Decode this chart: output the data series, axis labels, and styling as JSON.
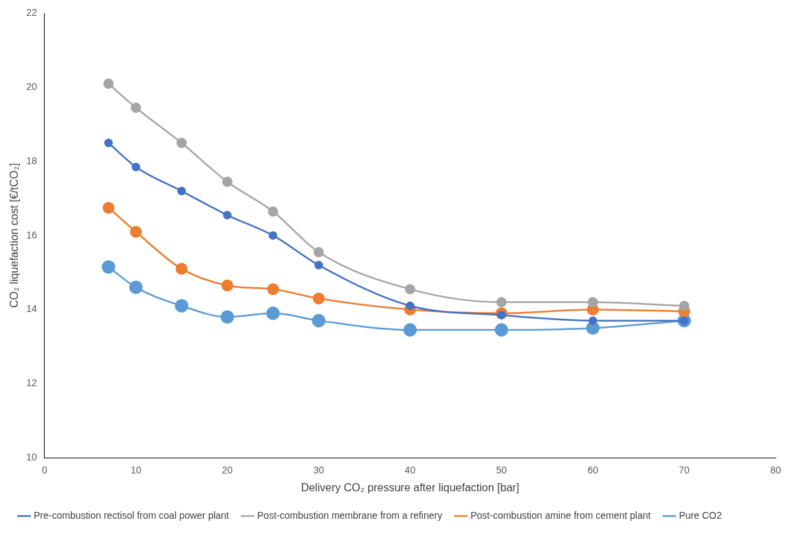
{
  "chart_data": {
    "type": "line",
    "xlabel": "Delivery CO₂ pressure after liquefaction [bar]",
    "ylabel": "CO₂ liquefaction cost [€/tCO₂]",
    "x": [
      7,
      10,
      15,
      20,
      25,
      30,
      40,
      50,
      60,
      70
    ],
    "xlim": [
      0,
      80
    ],
    "xticks": [
      0,
      10,
      20,
      30,
      40,
      50,
      60,
      70,
      80
    ],
    "ylim": [
      10,
      22
    ],
    "yticks": [
      10,
      12,
      14,
      16,
      18,
      20,
      22
    ],
    "grid": false,
    "legend": "bottom",
    "marker": "circle",
    "line_style": "solid",
    "series": [
      {
        "name": "Pure CO2",
        "color": "#5b9bd5",
        "values": [
          15.15,
          14.6,
          14.1,
          13.8,
          13.9,
          13.7,
          13.45,
          13.45,
          13.5,
          13.7
        ]
      },
      {
        "name": "Post-combustion amine from cement plant",
        "color": "#ed7d31",
        "values": [
          16.75,
          16.1,
          15.1,
          14.65,
          14.55,
          14.3,
          14.0,
          13.9,
          14.0,
          13.95
        ]
      },
      {
        "name": "Post-combustion membrane from a refinery",
        "color": "#a5a5a5",
        "values": [
          20.1,
          19.45,
          18.5,
          17.45,
          16.65,
          15.55,
          14.55,
          14.2,
          14.2,
          14.1
        ]
      },
      {
        "name": "Pre-combustion rectisol from coal power plant",
        "color": "#4472c4",
        "values": [
          18.5,
          17.85,
          17.2,
          16.55,
          16.0,
          15.2,
          14.1,
          13.85,
          13.7,
          13.7
        ]
      }
    ]
  }
}
